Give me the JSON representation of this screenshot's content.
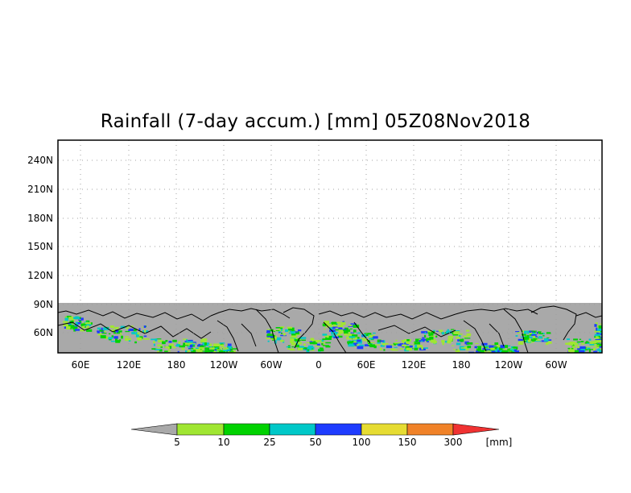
{
  "title": "Rainfall (7-day accum.) [mm] 05Z08Nov2018",
  "map": {
    "lat_labels": [
      "240N",
      "210N",
      "180N",
      "150N",
      "120N",
      "90N",
      "60N"
    ],
    "lon_labels": [
      "60E",
      "120E",
      "180",
      "120W",
      "60W",
      "0",
      "60E",
      "120E",
      "180",
      "120W",
      "60W"
    ],
    "no_data_color": "#a9a9a9"
  },
  "legend": {
    "unit": "[mm]",
    "thresholds": [
      "5",
      "10",
      "25",
      "50",
      "100",
      "150",
      "300"
    ],
    "colors": [
      "#a9a9a9",
      "#a0e632",
      "#00d200",
      "#00c8c8",
      "#1e3cff",
      "#e6dc32",
      "#f08228",
      "#f03232"
    ]
  }
}
